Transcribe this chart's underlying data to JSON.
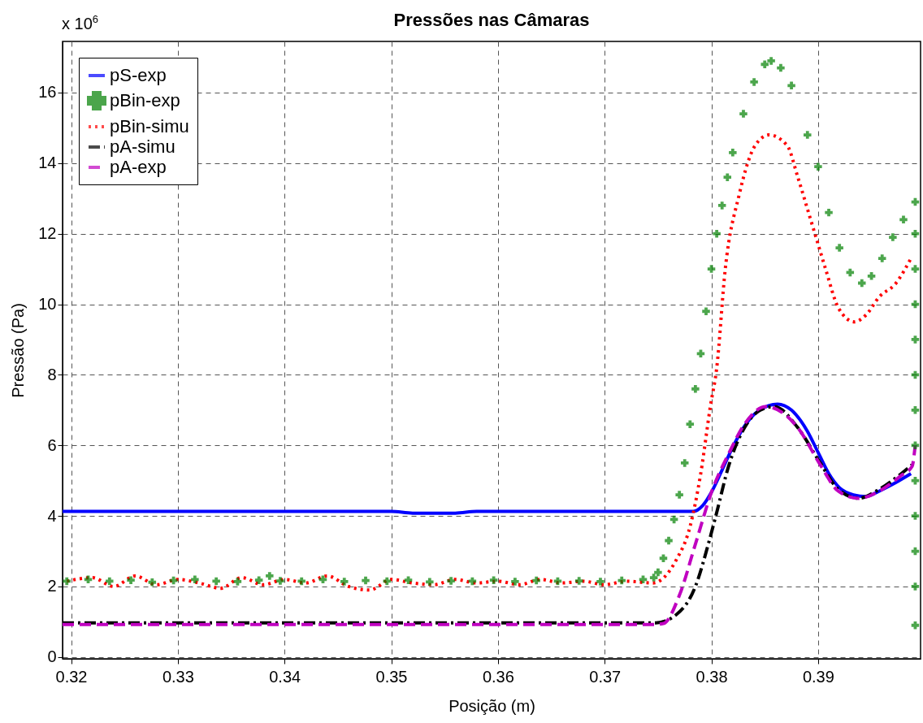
{
  "chart_data": {
    "type": "line",
    "title": "Pressões nas Câmaras",
    "xlabel": "Posição (m)",
    "ylabel": "Pressão (Pa)",
    "annotations": [
      "x 10$^{6}$"
    ],
    "xlim": [
      0.3192,
      0.3996
    ],
    "ylim": [
      -0.05,
      17.45
    ],
    "xticks": [
      {
        "value": 0.32,
        "label": "0.32"
      },
      {
        "value": 0.33,
        "label": "0.33"
      },
      {
        "value": 0.34,
        "label": "0.34"
      },
      {
        "value": 0.35,
        "label": "0.35"
      },
      {
        "value": 0.36,
        "label": "0.36"
      },
      {
        "value": 0.37,
        "label": "0.37"
      },
      {
        "value": 0.38,
        "label": "0.38"
      },
      {
        "value": 0.39,
        "label": "0.39"
      }
    ],
    "yticks": [
      0,
      2,
      4,
      6,
      8,
      10,
      12,
      14,
      16
    ],
    "grid": true,
    "legend": "top left",
    "series": [
      {
        "name": "pS-exp",
        "color": "#0000ff",
        "line_style": "solid",
        "x": [
          0.3192,
          0.335,
          0.35,
          0.352,
          0.356,
          0.358,
          0.37,
          0.3783,
          0.3792,
          0.38,
          0.381,
          0.382,
          0.383,
          0.3845,
          0.3862,
          0.3875,
          0.389,
          0.39,
          0.391,
          0.392,
          0.3933,
          0.3945,
          0.3957,
          0.397,
          0.3987
        ],
        "values": [
          4.13,
          4.13,
          4.13,
          4.08,
          4.08,
          4.13,
          4.13,
          4.13,
          4.3,
          4.67,
          5.3,
          5.95,
          6.5,
          7.0,
          7.17,
          7.0,
          6.4,
          5.8,
          5.2,
          4.8,
          4.6,
          4.55,
          4.7,
          4.9,
          5.2
        ]
      },
      {
        "name": "pBin-exp",
        "type": "scatter",
        "marker": "cross",
        "color": "#008000",
        "x": [
          0.3196,
          0.3216,
          0.3236,
          0.3256,
          0.3276,
          0.3296,
          0.3316,
          0.3336,
          0.3356,
          0.3376,
          0.3386,
          0.3396,
          0.3416,
          0.3436,
          0.3456,
          0.3476,
          0.3496,
          0.3516,
          0.3536,
          0.3556,
          0.3576,
          0.3596,
          0.3616,
          0.3636,
          0.3656,
          0.3676,
          0.3696,
          0.3716,
          0.3736,
          0.3746,
          0.375,
          0.3755,
          0.376,
          0.3765,
          0.377,
          0.3775,
          0.378,
          0.3785,
          0.379,
          0.3795,
          0.38,
          0.3805,
          0.381,
          0.3815,
          0.382,
          0.383,
          0.384,
          0.385,
          0.3856,
          0.3865,
          0.3875,
          0.389,
          0.39,
          0.391,
          0.392,
          0.393,
          0.3941,
          0.395,
          0.396,
          0.397,
          0.398,
          0.3991,
          0.3991,
          0.3991,
          0.3991,
          0.3991,
          0.3991,
          0.3991,
          0.3991,
          0.3991,
          0.3991,
          0.3991,
          0.3991,
          0.3991
        ],
        "values": [
          2.15,
          2.2,
          2.15,
          2.18,
          2.12,
          2.17,
          2.2,
          2.15,
          2.14,
          2.18,
          2.3,
          2.16,
          2.15,
          2.2,
          2.14,
          2.17,
          2.15,
          2.18,
          2.13,
          2.16,
          2.15,
          2.18,
          2.14,
          2.17,
          2.15,
          2.16,
          2.14,
          2.17,
          2.2,
          2.25,
          2.4,
          2.8,
          3.3,
          3.9,
          4.6,
          5.5,
          6.6,
          7.6,
          8.6,
          9.8,
          11.0,
          12.0,
          12.8,
          13.6,
          14.3,
          15.4,
          16.3,
          16.8,
          16.9,
          16.7,
          16.2,
          14.8,
          13.9,
          12.6,
          11.6,
          10.9,
          10.6,
          10.8,
          11.3,
          11.9,
          12.4,
          12.9,
          12.0,
          11.0,
          10.0,
          9.0,
          8.0,
          7.0,
          6.0,
          5.0,
          4.0,
          3.0,
          2.0,
          0.9
        ]
      },
      {
        "name": "pBin-simu",
        "color": "#ff0000",
        "line_style": "dotted",
        "x": [
          0.3196,
          0.322,
          0.324,
          0.326,
          0.328,
          0.33,
          0.332,
          0.334,
          0.336,
          0.338,
          0.34,
          0.342,
          0.344,
          0.346,
          0.348,
          0.35,
          0.352,
          0.354,
          0.356,
          0.358,
          0.36,
          0.362,
          0.364,
          0.366,
          0.368,
          0.37,
          0.372,
          0.3745,
          0.3767,
          0.378,
          0.379,
          0.3799,
          0.3805,
          0.3813,
          0.3826,
          0.3841,
          0.3854,
          0.3871,
          0.3881,
          0.3892,
          0.39,
          0.3907,
          0.3919,
          0.3934,
          0.3945,
          0.3957,
          0.3973,
          0.3987
        ],
        "values": [
          2.15,
          2.25,
          2.0,
          2.3,
          2.05,
          2.2,
          2.1,
          1.95,
          2.25,
          2.05,
          2.2,
          2.1,
          2.3,
          2.0,
          1.9,
          2.2,
          2.1,
          2.05,
          2.2,
          2.1,
          2.15,
          2.05,
          2.2,
          2.1,
          2.15,
          2.05,
          2.15,
          2.1,
          2.75,
          3.7,
          5.2,
          7.1,
          8.2,
          11.0,
          13.1,
          14.5,
          14.8,
          14.5,
          13.6,
          12.5,
          11.7,
          11.0,
          9.9,
          9.5,
          9.7,
          10.2,
          10.6,
          11.3
        ]
      },
      {
        "name": "pA-simu",
        "color": "#000000",
        "line_style": "dashdot",
        "x": [
          0.3192,
          0.3748,
          0.3767,
          0.3785,
          0.3798,
          0.3805,
          0.3816,
          0.3831,
          0.3846,
          0.3859,
          0.3881,
          0.3902,
          0.3919,
          0.3938,
          0.3957,
          0.3978,
          0.3988
        ],
        "values": [
          0.97,
          0.97,
          1.2,
          2.0,
          3.3,
          4.1,
          5.4,
          6.5,
          7.0,
          7.1,
          6.5,
          5.5,
          4.75,
          4.5,
          4.75,
          5.2,
          5.45
        ]
      },
      {
        "name": "pA-exp",
        "color": "#c000c0",
        "line_style": "dashed",
        "x": [
          0.3192,
          0.3745,
          0.3755,
          0.377,
          0.3785,
          0.3801,
          0.3816,
          0.3831,
          0.3851,
          0.3881,
          0.3902,
          0.3919,
          0.3938,
          0.3957,
          0.3978,
          0.3988,
          0.3991
        ],
        "values": [
          0.92,
          0.92,
          0.95,
          1.75,
          3.2,
          4.75,
          5.75,
          6.6,
          7.1,
          6.5,
          5.45,
          4.7,
          4.5,
          4.7,
          5.15,
          5.4,
          6.0
        ]
      }
    ]
  }
}
